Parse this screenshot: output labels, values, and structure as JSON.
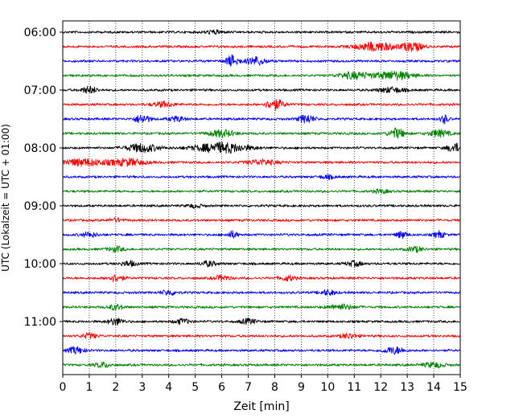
{
  "chart_data": {
    "type": "line",
    "subtype": "helicorder",
    "title": "",
    "xlabel": "Zeit  [min]",
    "ylabel": "UTC (Lokalzeit = UTC + 01:00)",
    "xlim": [
      0,
      15
    ],
    "x_ticks": [
      "0",
      "1",
      "2",
      "3",
      "4",
      "5",
      "6",
      "7",
      "8",
      "9",
      "10",
      "11",
      "12",
      "13",
      "14",
      "15"
    ],
    "y_ticks": [
      "06:00",
      "07:00",
      "08:00",
      "09:00",
      "10:00",
      "11:00"
    ],
    "grid": "x-dotted",
    "trace_colors": [
      "#000000",
      "#ff0000",
      "#0000ff",
      "#008000"
    ],
    "traces": [
      {
        "start": "06:00",
        "color": "#000000",
        "bursts": [
          [
            5.7,
            0.35,
            2
          ]
        ]
      },
      {
        "start": "06:15",
        "color": "#ff0000",
        "bursts": [
          [
            11.8,
            0.8,
            5
          ],
          [
            13.2,
            0.4,
            5
          ]
        ]
      },
      {
        "start": "06:30",
        "color": "#0000ff",
        "bursts": [
          [
            6.4,
            0.25,
            7
          ],
          [
            7.3,
            0.35,
            5
          ]
        ]
      },
      {
        "start": "06:45",
        "color": "#008000",
        "bursts": [
          [
            11.0,
            0.6,
            4
          ],
          [
            12.5,
            0.7,
            5
          ]
        ]
      },
      {
        "start": "07:00",
        "color": "#000000",
        "bursts": [
          [
            1.0,
            0.3,
            4
          ],
          [
            12.4,
            0.5,
            3
          ]
        ]
      },
      {
        "start": "07:15",
        "color": "#ff0000",
        "bursts": [
          [
            3.8,
            0.4,
            3
          ],
          [
            8.0,
            0.35,
            6
          ]
        ]
      },
      {
        "start": "07:30",
        "color": "#0000ff",
        "bursts": [
          [
            3.0,
            0.3,
            5
          ],
          [
            4.3,
            0.3,
            3
          ],
          [
            9.2,
            0.3,
            5
          ],
          [
            14.4,
            0.15,
            5
          ]
        ]
      },
      {
        "start": "07:45",
        "color": "#008000",
        "bursts": [
          [
            6.0,
            0.5,
            4
          ],
          [
            12.6,
            0.3,
            6
          ],
          [
            14.2,
            0.4,
            4
          ]
        ]
      },
      {
        "start": "08:00",
        "color": "#000000",
        "bursts": [
          [
            3.0,
            0.6,
            5
          ],
          [
            6.0,
            1.0,
            6
          ],
          [
            14.8,
            0.3,
            5
          ]
        ]
      },
      {
        "start": "08:15",
        "color": "#ff0000",
        "bursts": [
          [
            0.8,
            1.0,
            4
          ],
          [
            2.5,
            0.6,
            4
          ],
          [
            7.5,
            0.6,
            3
          ]
        ]
      },
      {
        "start": "08:30",
        "color": "#0000ff",
        "bursts": [
          [
            10.0,
            0.3,
            2
          ]
        ]
      },
      {
        "start": "08:45",
        "color": "#008000",
        "bursts": [
          [
            12.0,
            0.3,
            2
          ]
        ]
      },
      {
        "start": "09:00",
        "color": "#000000",
        "bursts": [
          [
            5.0,
            0.3,
            2
          ]
        ]
      },
      {
        "start": "09:15",
        "color": "#ff0000",
        "bursts": [
          [
            2.0,
            0.3,
            2
          ]
        ]
      },
      {
        "start": "09:30",
        "color": "#0000ff",
        "bursts": [
          [
            1.0,
            0.3,
            3
          ],
          [
            6.4,
            0.2,
            4
          ],
          [
            12.8,
            0.2,
            4
          ],
          [
            14.2,
            0.2,
            4
          ]
        ]
      },
      {
        "start": "09:45",
        "color": "#008000",
        "bursts": [
          [
            2.0,
            0.3,
            3
          ],
          [
            13.3,
            0.3,
            3
          ]
        ]
      },
      {
        "start": "10:00",
        "color": "#000000",
        "bursts": [
          [
            2.5,
            0.3,
            3
          ],
          [
            5.5,
            0.3,
            3
          ],
          [
            11.0,
            0.3,
            3
          ]
        ]
      },
      {
        "start": "10:15",
        "color": "#ff0000",
        "bursts": [
          [
            2.0,
            0.3,
            4
          ],
          [
            6.0,
            0.3,
            3
          ],
          [
            8.5,
            0.3,
            3
          ]
        ]
      },
      {
        "start": "10:30",
        "color": "#0000ff",
        "bursts": [
          [
            4.0,
            0.3,
            3
          ],
          [
            10.0,
            0.3,
            3
          ]
        ]
      },
      {
        "start": "10:45",
        "color": "#008000",
        "bursts": [
          [
            2.0,
            0.3,
            3
          ],
          [
            10.5,
            0.5,
            3
          ]
        ]
      },
      {
        "start": "11:00",
        "color": "#000000",
        "bursts": [
          [
            2.0,
            0.3,
            4
          ],
          [
            4.5,
            0.3,
            3
          ],
          [
            7.0,
            0.3,
            3
          ]
        ]
      },
      {
        "start": "11:15",
        "color": "#ff0000",
        "bursts": [
          [
            1.0,
            0.3,
            3
          ],
          [
            10.8,
            0.3,
            3
          ]
        ]
      },
      {
        "start": "11:30",
        "color": "#0000ff",
        "bursts": [
          [
            0.5,
            0.3,
            4
          ],
          [
            12.5,
            0.4,
            4
          ]
        ]
      },
      {
        "start": "11:45",
        "color": "#008000",
        "bursts": [
          [
            1.5,
            0.3,
            3
          ],
          [
            14.0,
            0.4,
            3
          ]
        ]
      }
    ]
  }
}
